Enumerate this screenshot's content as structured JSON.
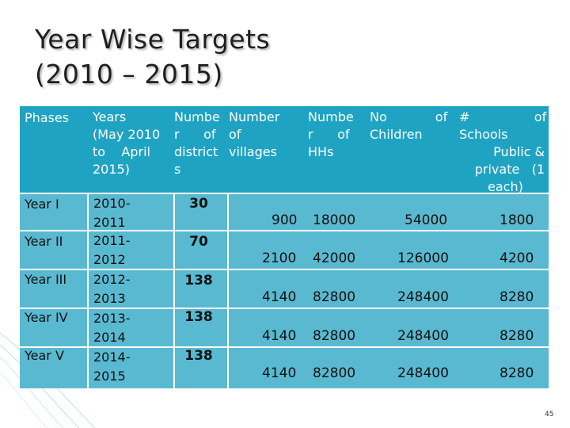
{
  "title": {
    "line1": "Year Wise Targets",
    "line2": "(2010 – 2015)"
  },
  "table": {
    "headers": {
      "phases": "Phases",
      "years": [
        "Years",
        "(May 2010",
        "to    April",
        "2015)"
      ],
      "districts": [
        "Numbe",
        "r      of",
        "district",
        "s"
      ],
      "villages": [
        "Number",
        "of",
        "villages"
      ],
      "hhs": [
        "Numbe",
        "r      of",
        "HHs"
      ],
      "children": [
        "No            of",
        "Children"
      ],
      "schools": [
        "#                of",
        "Schools",
        "Public  &",
        "private   (1",
        "each)"
      ]
    },
    "rows": [
      {
        "phase": "Year I",
        "year_a": "2010-",
        "year_b": "2011",
        "districts": "30",
        "villages": "900",
        "hhs": "18000",
        "children": "54000",
        "schools": "1800"
      },
      {
        "phase": "Year II",
        "year_a": "2011-",
        "year_b": "2012",
        "districts": "70",
        "villages": "2100",
        "hhs": "42000",
        "children": "126000",
        "schools": "4200"
      },
      {
        "phase": "Year III",
        "year_a": "2012-",
        "year_b": "2013",
        "districts": "138",
        "villages": "4140",
        "hhs": "82800",
        "children": "248400",
        "schools": "8280"
      },
      {
        "phase": "Year IV",
        "year_a": "2013-",
        "year_b": "2014",
        "districts": "138",
        "villages": "4140",
        "hhs": "82800",
        "children": "248400",
        "schools": "8280"
      },
      {
        "phase": "Year V",
        "year_a": "2014-",
        "year_b": "2015",
        "districts": "138",
        "villages": "4140",
        "hhs": "82800",
        "children": "248400",
        "schools": "8280"
      }
    ]
  },
  "page_number": "45",
  "colors": {
    "header_bg": "#1fa3c3",
    "body_bg": "#59b9d0",
    "grid": "#ffffff"
  }
}
